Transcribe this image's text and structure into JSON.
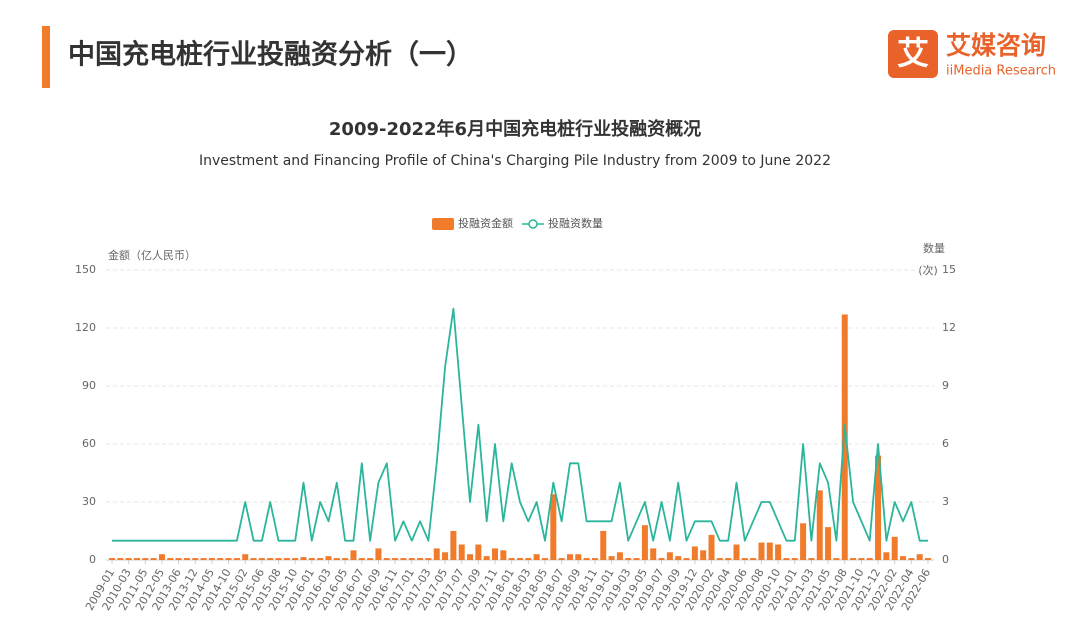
{
  "header": {
    "title": "中国充电桩行业投融资分析（一）",
    "logo_mark": "艾",
    "logo_name": "艾媒咨询",
    "logo_sub": "iiMedia Research"
  },
  "chart_data": {
    "type": "bar",
    "title": "2009-2022年6月中国充电桩行业投融资概况",
    "subtitle": "Investment and Financing Profile of China's Charging Pile Industry from 2009 to June 2022",
    "y_label": "金额（亿人民币）",
    "y2_label": "数量",
    "y2_unit": "(次)",
    "legend_position": "top",
    "categories": [
      "2009-01",
      null,
      "2010-03",
      null,
      "2011-05",
      null,
      "2012-05",
      null,
      "2013-06",
      null,
      "2013-12",
      null,
      "2014-05",
      null,
      "2014-10",
      null,
      "2015-02",
      null,
      "2015-06",
      null,
      "2015-08",
      null,
      "2015-10",
      null,
      "2016-01",
      null,
      "2016-03",
      null,
      "2016-05",
      null,
      "2016-07",
      null,
      "2016-09",
      null,
      "2016-11",
      null,
      "2017-01",
      null,
      "2017-03",
      null,
      "2017-05",
      null,
      "2017-07",
      null,
      "2017-09",
      null,
      "2017-11",
      null,
      "2018-01",
      null,
      "2018-03",
      null,
      "2018-05",
      null,
      "2018-07",
      null,
      "2018-09",
      null,
      "2018-11",
      null,
      "2019-01",
      null,
      "2019-03",
      null,
      "2019-05",
      null,
      "2019-07",
      null,
      "2019-09",
      null,
      "2019-12",
      null,
      "2020-02",
      null,
      "2020-04",
      null,
      "2020-06",
      null,
      "2020-08",
      null,
      "2020-10",
      null,
      "2021-01",
      null,
      "2021-03",
      null,
      "2021-05",
      null,
      "2021-08",
      null,
      "2021-10",
      null,
      "2021-12",
      null,
      "2022-02",
      null,
      "2022-04",
      null,
      "2022-06"
    ],
    "series": [
      {
        "name": "投融资金额",
        "type": "bar",
        "color": "#f07b2b",
        "values": [
          1,
          1,
          1,
          1,
          1,
          1,
          3,
          1,
          1,
          1,
          1,
          1,
          1,
          1,
          1,
          1,
          3,
          1,
          1,
          1,
          1,
          1,
          1,
          1.5,
          1,
          1,
          2,
          1,
          1,
          5,
          1,
          1,
          6,
          1,
          1,
          1,
          1,
          1,
          1,
          6,
          4,
          15,
          8,
          3,
          8,
          2,
          6,
          5,
          1,
          1,
          1,
          3,
          1,
          34,
          1,
          3,
          3,
          1,
          1,
          15,
          2,
          4,
          1,
          1,
          18,
          6,
          1,
          4,
          2,
          1,
          7,
          5,
          13,
          1,
          1,
          8,
          1,
          1,
          9,
          9,
          8,
          1,
          1,
          19,
          1,
          36,
          17,
          1,
          127,
          1,
          1,
          1,
          54,
          4,
          12,
          2,
          1,
          3,
          1
        ]
      },
      {
        "name": "投融资数量",
        "type": "line",
        "axis": "y2",
        "color": "#2bb59a",
        "values": [
          1,
          1,
          1,
          1,
          1,
          1,
          1,
          1,
          1,
          1,
          1,
          1,
          1,
          1,
          1,
          1,
          3,
          1,
          1,
          3,
          1,
          1,
          1,
          4,
          1,
          3,
          2,
          4,
          1,
          1,
          5,
          1,
          4,
          5,
          1,
          2,
          1,
          2,
          1,
          5,
          10,
          13,
          8,
          3,
          7,
          2,
          6,
          2,
          5,
          3,
          2,
          3,
          1,
          4,
          2,
          5,
          5,
          2,
          2,
          2,
          2,
          4,
          1,
          2,
          3,
          1,
          3,
          1,
          4,
          1,
          2,
          2,
          2,
          1,
          1,
          4,
          1,
          2,
          3,
          3,
          2,
          1,
          1,
          6,
          1,
          5,
          4,
          1,
          7,
          3,
          2,
          1,
          6,
          1,
          3,
          2,
          3,
          1,
          1
        ]
      }
    ],
    "ylim": [
      0,
      150
    ],
    "yticks": [
      0,
      30,
      60,
      90,
      120,
      150
    ],
    "y2lim": [
      0,
      15
    ],
    "y2ticks": [
      0,
      3,
      6,
      9,
      12,
      15
    ],
    "grid": true
  }
}
